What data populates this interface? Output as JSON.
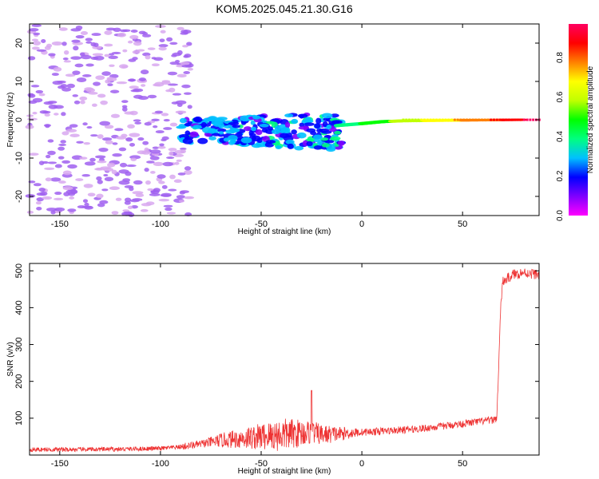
{
  "chart_data": [
    {
      "type": "heatmap",
      "title": "KOM5.2025.045.21.30.G16",
      "xlabel": "Height of straight line (km)",
      "ylabel": "Frequency (Hz)",
      "xlim": [
        -165,
        88
      ],
      "ylim": [
        -25,
        25
      ],
      "xticks": [
        -150,
        -100,
        -50,
        0,
        50
      ],
      "yticks": [
        -20,
        -10,
        0,
        10,
        20
      ],
      "grid": false,
      "colorbar": {
        "label": "Normalized spectral amplitude",
        "range": [
          0,
          1
        ],
        "ticks": [
          "0.0",
          "0.2",
          "0.4",
          "0.6",
          "0.8"
        ],
        "colors": [
          "#ff00ff",
          "#8000ff",
          "#0000ff",
          "#00c0ff",
          "#00ff80",
          "#00ff00",
          "#c0ff00",
          "#ffff00",
          "#ff8000",
          "#ff0000",
          "#ff0060"
        ]
      },
      "description_points": [
        {
          "x": -150,
          "y": 0,
          "amp": 0.1
        },
        {
          "x": -60,
          "y": -2,
          "amp": 0.25
        },
        {
          "x": -45,
          "y": -1,
          "amp": 0.35
        },
        {
          "x": -35,
          "y": -4,
          "amp": 0.3
        },
        {
          "x": -12,
          "y": -1.5,
          "amp": 0.4
        },
        {
          "x": 0,
          "y": -1,
          "amp": 0.45
        },
        {
          "x": 10,
          "y": -0.5,
          "amp": 0.5
        },
        {
          "x": 20,
          "y": -0.3,
          "amp": 0.6
        },
        {
          "x": 40,
          "y": -0.2,
          "amp": 0.7
        },
        {
          "x": 60,
          "y": -0.1,
          "amp": 0.8
        },
        {
          "x": 80,
          "y": 0,
          "amp": 0.9
        }
      ]
    },
    {
      "type": "line",
      "xlabel": "Height of straight line (km)",
      "ylabel": "SNR (v/v)",
      "xlim": [
        -165,
        88
      ],
      "ylim": [
        0,
        520
      ],
      "xticks": [
        -150,
        -100,
        -50,
        0,
        50
      ],
      "yticks": [
        100,
        200,
        300,
        400,
        500
      ],
      "grid": false,
      "color": "#ee3333",
      "x": [
        -165,
        -140,
        -120,
        -100,
        -90,
        -80,
        -70,
        -60,
        -50,
        -40,
        -30,
        -25,
        -20,
        -10,
        0,
        10,
        20,
        30,
        40,
        50,
        60,
        65,
        67,
        68,
        69,
        70,
        75,
        80,
        88
      ],
      "y": [
        15,
        15,
        16,
        18,
        22,
        30,
        40,
        45,
        50,
        55,
        60,
        62,
        55,
        58,
        62,
        65,
        68,
        72,
        78,
        85,
        92,
        95,
        100,
        250,
        410,
        470,
        490,
        495,
        490
      ],
      "peak": {
        "x": -25,
        "y": 175
      }
    }
  ]
}
